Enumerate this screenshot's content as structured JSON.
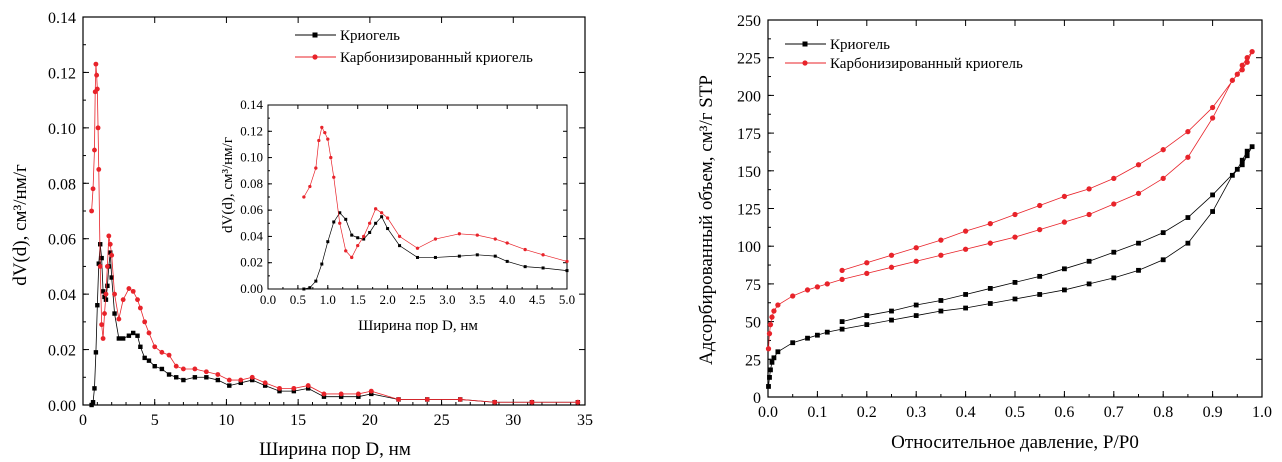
{
  "colors": {
    "series_a": "#000000",
    "series_b": "#e8232a"
  },
  "chart_data": [
    {
      "type": "line",
      "xlabel": "Ширина пор D, нм",
      "ylabel": "dV(d), см³/нм/г",
      "xlim": [
        0,
        35
      ],
      "ylim": [
        0,
        0.14
      ],
      "xticks": [
        0,
        5,
        10,
        15,
        20,
        25,
        30,
        35
      ],
      "yticks": [
        0.0,
        0.02,
        0.04,
        0.06,
        0.08,
        0.1,
        0.12,
        0.14
      ],
      "ytick_labels": [
        "0.00",
        "0.02",
        "0.04",
        "0.06",
        "0.08",
        "0.10",
        "0.12",
        "0.14"
      ],
      "legend_position": "top-right",
      "series": [
        {
          "name": "Криогель",
          "color": "#000000",
          "marker": "square",
          "x": [
            0.6,
            0.7,
            0.8,
            0.9,
            1.0,
            1.1,
            1.2,
            1.3,
            1.4,
            1.5,
            1.6,
            1.7,
            1.8,
            1.9,
            2.0,
            2.2,
            2.5,
            2.8,
            3.2,
            3.5,
            3.8,
            4.0,
            4.3,
            4.6,
            5.0,
            5.5,
            6.0,
            6.5,
            7.0,
            7.8,
            8.6,
            9.4,
            10.2,
            11.0,
            11.8,
            12.7,
            13.7,
            14.7,
            15.7,
            16.8,
            18.0,
            19.2,
            20.1,
            22.0,
            24.0,
            26.3,
            28.7,
            31.3,
            34.5
          ],
          "y": [
            0.0,
            0.001,
            0.006,
            0.019,
            0.036,
            0.051,
            0.058,
            0.053,
            0.041,
            0.039,
            0.038,
            0.043,
            0.05,
            0.055,
            0.046,
            0.033,
            0.024,
            0.024,
            0.025,
            0.026,
            0.025,
            0.021,
            0.017,
            0.016,
            0.014,
            0.013,
            0.011,
            0.01,
            0.009,
            0.01,
            0.01,
            0.009,
            0.007,
            0.008,
            0.009,
            0.007,
            0.005,
            0.005,
            0.006,
            0.003,
            0.003,
            0.003,
            0.004,
            0.002,
            0.002,
            0.002,
            0.001,
            0.001,
            0.001
          ]
        },
        {
          "name": "Карбонизированный криогель",
          "color": "#e8232a",
          "marker": "circle",
          "x": [
            0.6,
            0.7,
            0.8,
            0.85,
            0.9,
            0.95,
            1.0,
            1.05,
            1.1,
            1.2,
            1.3,
            1.4,
            1.5,
            1.6,
            1.7,
            1.8,
            1.9,
            2.0,
            2.2,
            2.5,
            2.8,
            3.2,
            3.5,
            3.8,
            4.0,
            4.3,
            4.6,
            5.0,
            5.5,
            6.0,
            6.5,
            7.0,
            7.8,
            8.6,
            9.4,
            10.2,
            11.0,
            11.8,
            12.7,
            13.7,
            14.7,
            15.7,
            16.8,
            18.0,
            19.2,
            20.1,
            22.0,
            24.0,
            26.3,
            28.7,
            31.3,
            34.5
          ],
          "y": [
            0.07,
            0.078,
            0.092,
            0.113,
            0.123,
            0.119,
            0.114,
            0.1,
            0.085,
            0.05,
            0.029,
            0.024,
            0.033,
            0.04,
            0.05,
            0.061,
            0.058,
            0.054,
            0.04,
            0.031,
            0.038,
            0.042,
            0.041,
            0.038,
            0.035,
            0.03,
            0.026,
            0.021,
            0.019,
            0.018,
            0.014,
            0.013,
            0.013,
            0.012,
            0.011,
            0.009,
            0.009,
            0.01,
            0.008,
            0.006,
            0.006,
            0.007,
            0.004,
            0.004,
            0.004,
            0.005,
            0.002,
            0.002,
            0.002,
            0.001,
            0.001,
            0.001
          ]
        }
      ]
    },
    {
      "type": "line",
      "role": "inset",
      "xlabel": "Ширина пор D, нм",
      "ylabel": "dV(d), см³/нм/г",
      "xlim": [
        0,
        5
      ],
      "ylim": [
        0,
        0.14
      ],
      "xticks": [
        0.0,
        0.5,
        1.0,
        1.5,
        2.0,
        2.5,
        3.0,
        3.5,
        4.0,
        4.5,
        5.0
      ],
      "xtick_labels": [
        "0.0",
        "0.5",
        "1.0",
        "1.5",
        "2.0",
        "2.5",
        "3.0",
        "3.5",
        "4.0",
        "4.5",
        "5.0"
      ],
      "yticks": [
        0.0,
        0.02,
        0.04,
        0.06,
        0.08,
        0.1,
        0.12,
        0.14
      ],
      "ytick_labels": [
        "0.00",
        "0.02",
        "0.04",
        "0.06",
        "0.08",
        "0.10",
        "0.12",
        "0.14"
      ],
      "series": [
        {
          "color": "#000000",
          "marker": "square",
          "x": [
            0.6,
            0.7,
            0.8,
            0.9,
            1.0,
            1.1,
            1.2,
            1.3,
            1.4,
            1.5,
            1.6,
            1.7,
            1.8,
            1.9,
            2.0,
            2.2,
            2.5,
            2.8,
            3.2,
            3.5,
            3.8,
            4.0,
            4.3,
            4.6,
            5.0
          ],
          "y": [
            0.0,
            0.001,
            0.006,
            0.019,
            0.036,
            0.051,
            0.058,
            0.053,
            0.041,
            0.039,
            0.038,
            0.043,
            0.05,
            0.055,
            0.046,
            0.033,
            0.024,
            0.024,
            0.025,
            0.026,
            0.025,
            0.021,
            0.017,
            0.016,
            0.014
          ]
        },
        {
          "color": "#e8232a",
          "marker": "circle",
          "x": [
            0.6,
            0.7,
            0.8,
            0.85,
            0.9,
            0.95,
            1.0,
            1.05,
            1.1,
            1.2,
            1.3,
            1.4,
            1.5,
            1.6,
            1.7,
            1.8,
            1.9,
            2.0,
            2.2,
            2.5,
            2.8,
            3.2,
            3.5,
            3.8,
            4.0,
            4.3,
            4.6,
            5.0
          ],
          "y": [
            0.07,
            0.078,
            0.092,
            0.113,
            0.123,
            0.119,
            0.114,
            0.1,
            0.085,
            0.05,
            0.029,
            0.024,
            0.033,
            0.04,
            0.05,
            0.061,
            0.058,
            0.054,
            0.04,
            0.031,
            0.038,
            0.042,
            0.041,
            0.038,
            0.035,
            0.03,
            0.026,
            0.021
          ]
        }
      ]
    },
    {
      "type": "line",
      "xlabel": "Относительное давление, P/P0",
      "ylabel": "Адсорбированный объем, см³/г STP",
      "xlim": [
        0,
        1.0
      ],
      "ylim": [
        0,
        250
      ],
      "xticks": [
        0.0,
        0.1,
        0.2,
        0.3,
        0.4,
        0.5,
        0.6,
        0.7,
        0.8,
        0.9,
        1.0
      ],
      "xtick_labels": [
        "0.0",
        "0.1",
        "0.2",
        "0.3",
        "0.4",
        "0.5",
        "0.6",
        "0.7",
        "0.8",
        "0.9",
        "1.0"
      ],
      "yticks": [
        0,
        25,
        50,
        75,
        100,
        125,
        150,
        175,
        200,
        225,
        250
      ],
      "ytick_labels": [
        "0",
        "25",
        "50",
        "75",
        "100",
        "125",
        "150",
        "175",
        "200",
        "225",
        "250"
      ],
      "legend_position": "top-left",
      "series": [
        {
          "name": "Криогель",
          "color": "#000000",
          "marker": "square",
          "x": [
            0.001,
            0.003,
            0.005,
            0.008,
            0.012,
            0.02,
            0.05,
            0.08,
            0.1,
            0.12,
            0.15,
            0.2,
            0.25,
            0.3,
            0.35,
            0.4,
            0.45,
            0.5,
            0.55,
            0.6,
            0.65,
            0.7,
            0.75,
            0.8,
            0.85,
            0.9,
            0.94,
            0.96,
            0.97,
            0.98,
            0.97,
            0.96,
            0.95,
            0.9,
            0.85,
            0.8,
            0.75,
            0.7,
            0.65,
            0.6,
            0.55,
            0.5,
            0.45,
            0.4,
            0.35,
            0.3,
            0.25,
            0.2,
            0.15
          ],
          "y": [
            7,
            13,
            18,
            23,
            26,
            30,
            36,
            39,
            41,
            43,
            45,
            48,
            51,
            54,
            57,
            59,
            62,
            65,
            68,
            71,
            75,
            79,
            84,
            91,
            102,
            123,
            147,
            154,
            160,
            166,
            163,
            157,
            151,
            134,
            119,
            109,
            102,
            96,
            90,
            85,
            80,
            76,
            72,
            68,
            64,
            61,
            57,
            54,
            50
          ]
        },
        {
          "name": "Карбонизированный криогель",
          "color": "#e8232a",
          "marker": "circle",
          "x": [
            0.001,
            0.003,
            0.005,
            0.008,
            0.012,
            0.02,
            0.05,
            0.08,
            0.1,
            0.12,
            0.15,
            0.2,
            0.25,
            0.3,
            0.35,
            0.4,
            0.45,
            0.5,
            0.55,
            0.6,
            0.65,
            0.7,
            0.75,
            0.8,
            0.85,
            0.9,
            0.94,
            0.96,
            0.97,
            0.98,
            0.97,
            0.96,
            0.95,
            0.9,
            0.85,
            0.8,
            0.75,
            0.7,
            0.65,
            0.6,
            0.55,
            0.5,
            0.45,
            0.4,
            0.35,
            0.3,
            0.25,
            0.2,
            0.15
          ],
          "y": [
            32,
            42,
            48,
            53,
            57,
            61,
            67,
            71,
            73,
            75,
            78,
            82,
            86,
            90,
            94,
            98,
            102,
            106,
            111,
            116,
            121,
            128,
            135,
            145,
            159,
            185,
            210,
            217,
            222,
            229,
            225,
            220,
            214,
            192,
            176,
            164,
            154,
            145,
            138,
            133,
            127,
            121,
            115,
            110,
            104,
            99,
            94,
            89,
            84
          ]
        }
      ]
    }
  ]
}
